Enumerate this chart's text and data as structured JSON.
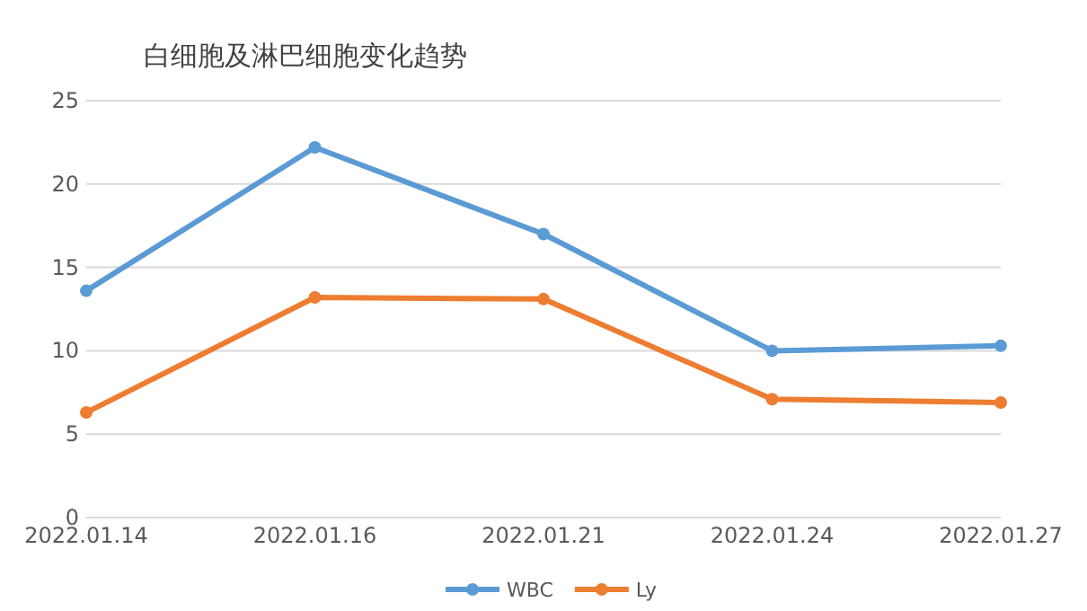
{
  "chart_data": {
    "type": "line",
    "title": "白细胞及淋巴细胞变化趋势",
    "categories": [
      "2022.01.14",
      "2022.01.16",
      "2022.01.21",
      "2022.01.24",
      "2022.01.27"
    ],
    "series": [
      {
        "name": "WBC",
        "color": "#5b9bd5",
        "values": [
          13.6,
          22.2,
          17.0,
          10.0,
          10.3
        ]
      },
      {
        "name": "Ly",
        "color": "#ed7d31",
        "values": [
          6.3,
          13.2,
          13.1,
          7.1,
          6.9
        ]
      }
    ],
    "ylim": [
      0,
      25
    ],
    "yticks": [
      0,
      5,
      10,
      15,
      20,
      25
    ],
    "grid": "y",
    "legend": "bottom",
    "marker": "circle",
    "line_style": "solid"
  }
}
